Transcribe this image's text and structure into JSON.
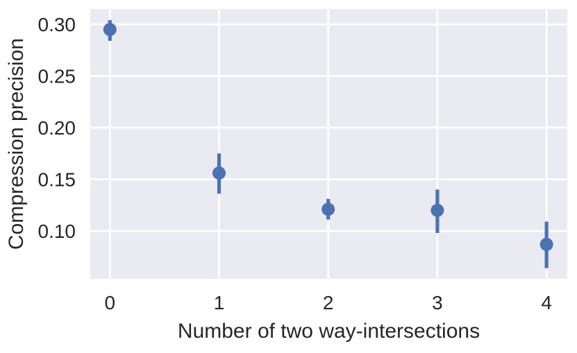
{
  "figure": {
    "kind": "seaborn-pointplot",
    "background": "#ffffff"
  },
  "chart_data": {
    "type": "scatter",
    "subtype": "point-estimates-with-error-bars",
    "title": "",
    "xlabel": "Number of two way-intersections",
    "ylabel": "Compression precision",
    "x": [
      0,
      1,
      2,
      3,
      4
    ],
    "xtick_labels": [
      "0",
      "1",
      "2",
      "3",
      "4"
    ],
    "ytick_values": [
      0.1,
      0.15,
      0.2,
      0.25,
      0.3
    ],
    "ytick_labels": [
      "0.10",
      "0.15",
      "0.20",
      "0.25",
      "0.30"
    ],
    "series": [
      {
        "name": "Compression precision",
        "values": [
          0.295,
          0.156,
          0.121,
          0.12,
          0.087
        ],
        "error_low": [
          0.284,
          0.136,
          0.111,
          0.098,
          0.064
        ],
        "error_high": [
          0.304,
          0.175,
          0.131,
          0.14,
          0.109
        ]
      }
    ],
    "xlim": [
      -0.18,
      4.19
    ],
    "ylim": [
      0.0537,
      0.3148
    ],
    "grid": true,
    "legend": false,
    "colors": {
      "point": "#4c72b0",
      "error_bar": "#4c72b0",
      "plot_background": "#eaeaf2",
      "grid_line": "#ffffff",
      "text": "#262626"
    }
  }
}
